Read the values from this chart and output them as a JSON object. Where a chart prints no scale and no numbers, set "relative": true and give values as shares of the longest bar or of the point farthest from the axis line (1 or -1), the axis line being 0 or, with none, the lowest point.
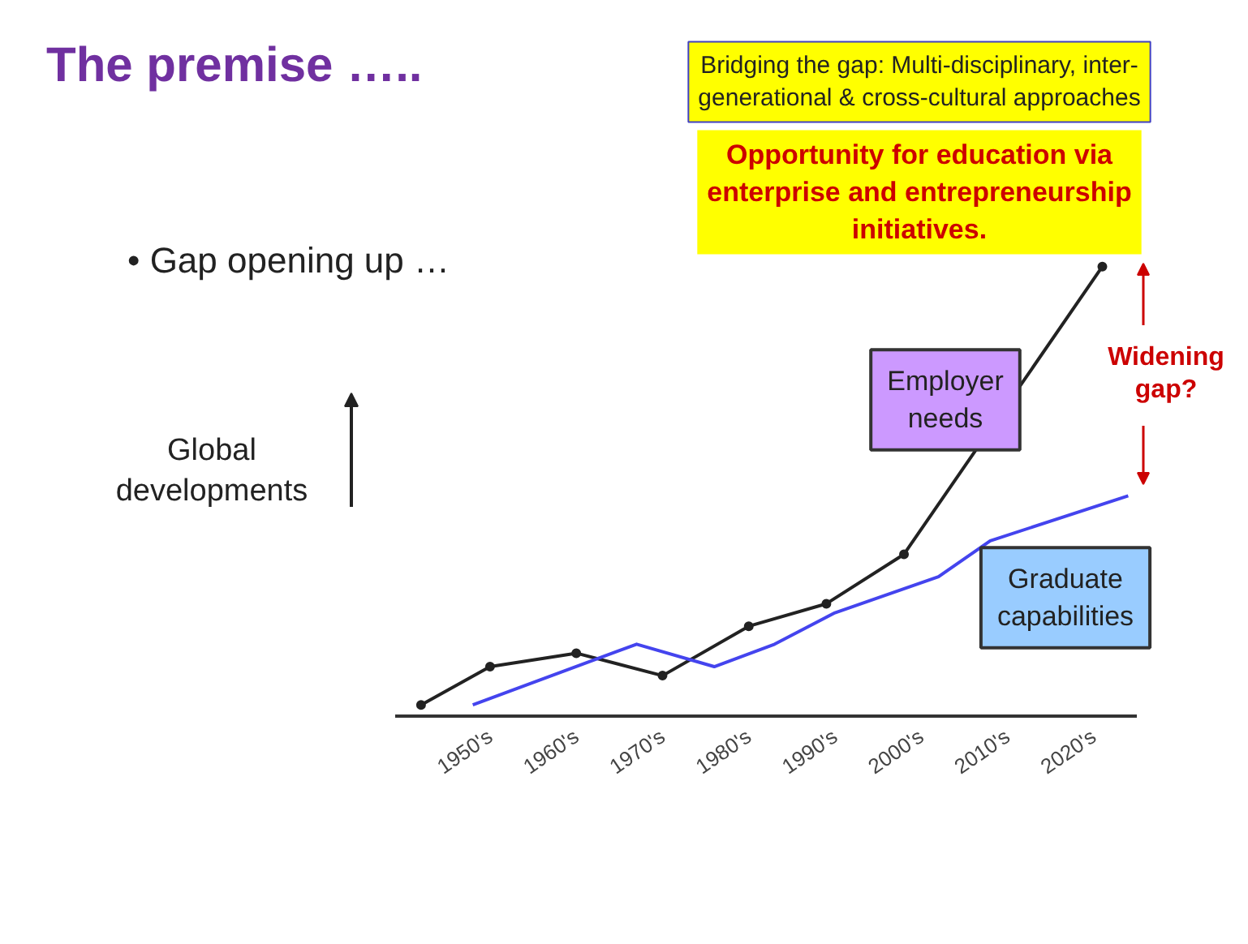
{
  "chart_data": {
    "type": "line",
    "title": "The premise …..",
    "subtitle": "• Gap opening up …",
    "ylabel": "Global developments",
    "relative": true,
    "legend": false,
    "grid": false,
    "tick_labels": "x",
    "xlim": [
      1939,
      2025
    ],
    "xticks": [
      {
        "value": 1950,
        "label": "1950's"
      },
      {
        "value": 1960,
        "label": "1960's"
      },
      {
        "value": 1970,
        "label": "1970's"
      },
      {
        "value": 1980,
        "label": "1980's"
      },
      {
        "value": 1990,
        "label": "1990's"
      },
      {
        "value": 2000,
        "label": "2000's"
      },
      {
        "value": 2010,
        "label": "2010's"
      },
      {
        "value": 2020,
        "label": "2020's"
      }
    ],
    "series": [
      {
        "name": "Employer needs",
        "color": "#222222",
        "marker": "circle",
        "x": [
          1942,
          1950,
          1960,
          1970,
          1980,
          1989,
          1998,
          2021
        ],
        "values": [
          0.025,
          0.11,
          0.14,
          0.09,
          0.2,
          0.25,
          0.36,
          1.0
        ]
      },
      {
        "name": "Graduate capabilities",
        "color": "#4444ee",
        "marker": "none",
        "x": [
          1948,
          1967,
          1976,
          1983,
          1990,
          2002,
          2008,
          2024
        ],
        "values": [
          0.025,
          0.16,
          0.11,
          0.16,
          0.23,
          0.31,
          0.39,
          0.49
        ]
      }
    ],
    "annotations": [
      "Bridging the gap: Multi-disciplinary, inter-generational & cross-cultural approaches",
      "Opportunity for education via enterprise and entrepreneurship initiatives.",
      "Widening gap?"
    ]
  }
}
